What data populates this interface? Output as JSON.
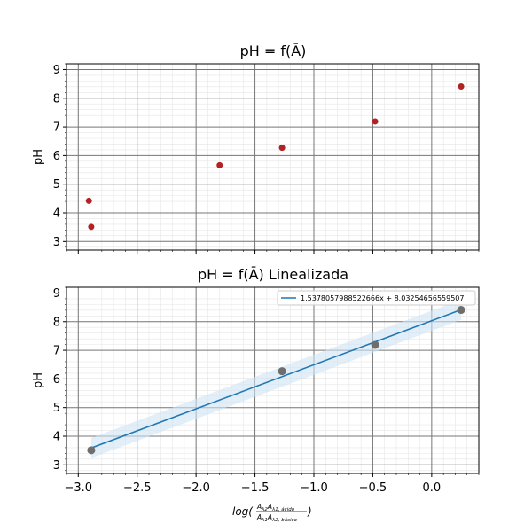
{
  "chart_data": [
    {
      "type": "scatter",
      "title": "pH = f(Ā)",
      "ylabel": "pH",
      "xlabel": "",
      "xlim": [
        -3.1,
        0.4
      ],
      "ylim": [
        2.7,
        9.2
      ],
      "grid": true,
      "x_ticks": [
        -3.0,
        -2.5,
        -2.0,
        -1.5,
        -1.0,
        -0.5,
        0.0
      ],
      "y_ticks": [
        3,
        4,
        5,
        6,
        7,
        8,
        9
      ],
      "y_tick_labels": [
        "3",
        "4",
        "5",
        "6",
        "7",
        "8",
        "9"
      ],
      "point_color": "#b22222",
      "points": [
        {
          "x": -2.91,
          "y": 4.42
        },
        {
          "x": -2.89,
          "y": 3.51
        },
        {
          "x": -1.8,
          "y": 5.66
        },
        {
          "x": -1.27,
          "y": 6.27
        },
        {
          "x": -0.48,
          "y": 7.19
        },
        {
          "x": 0.25,
          "y": 8.41
        }
      ]
    },
    {
      "type": "scatter",
      "title": "pH = f(Ā) Linealizada",
      "ylabel": "pH",
      "xlabel": "log(A λ2 A λ1, ácido / A λ1 A λ2, básico)",
      "xlim": [
        -3.1,
        0.4
      ],
      "ylim": [
        2.7,
        9.2
      ],
      "grid": true,
      "x_ticks": [
        -3.0,
        -2.5,
        -2.0,
        -1.5,
        -1.0,
        -0.5,
        0.0
      ],
      "x_tick_labels": [
        "−3.0",
        "−2.5",
        "−2.0",
        "−1.5",
        "−1.0",
        "−0.5",
        "0.0"
      ],
      "y_ticks": [
        3,
        4,
        5,
        6,
        7,
        8,
        9
      ],
      "y_tick_labels": [
        "3",
        "4",
        "5",
        "6",
        "7",
        "8",
        "9"
      ],
      "point_color": "#6e6e6e",
      "line_color": "#1f77b4",
      "band_color": "#cfe2f3",
      "points": [
        {
          "x": -2.89,
          "y": 3.51
        },
        {
          "x": -1.27,
          "y": 6.27
        },
        {
          "x": -0.48,
          "y": 7.19
        },
        {
          "x": 0.25,
          "y": 8.41
        }
      ],
      "fit": {
        "slope": 1.5378057988522666,
        "intercept": 8.03254656559507,
        "x_range": [
          -2.89,
          0.25
        ],
        "band_halfwidth": 0.35
      },
      "legend": {
        "label": "1.5378057988522666x + 8.03254656559507",
        "position": "top-right"
      }
    }
  ]
}
